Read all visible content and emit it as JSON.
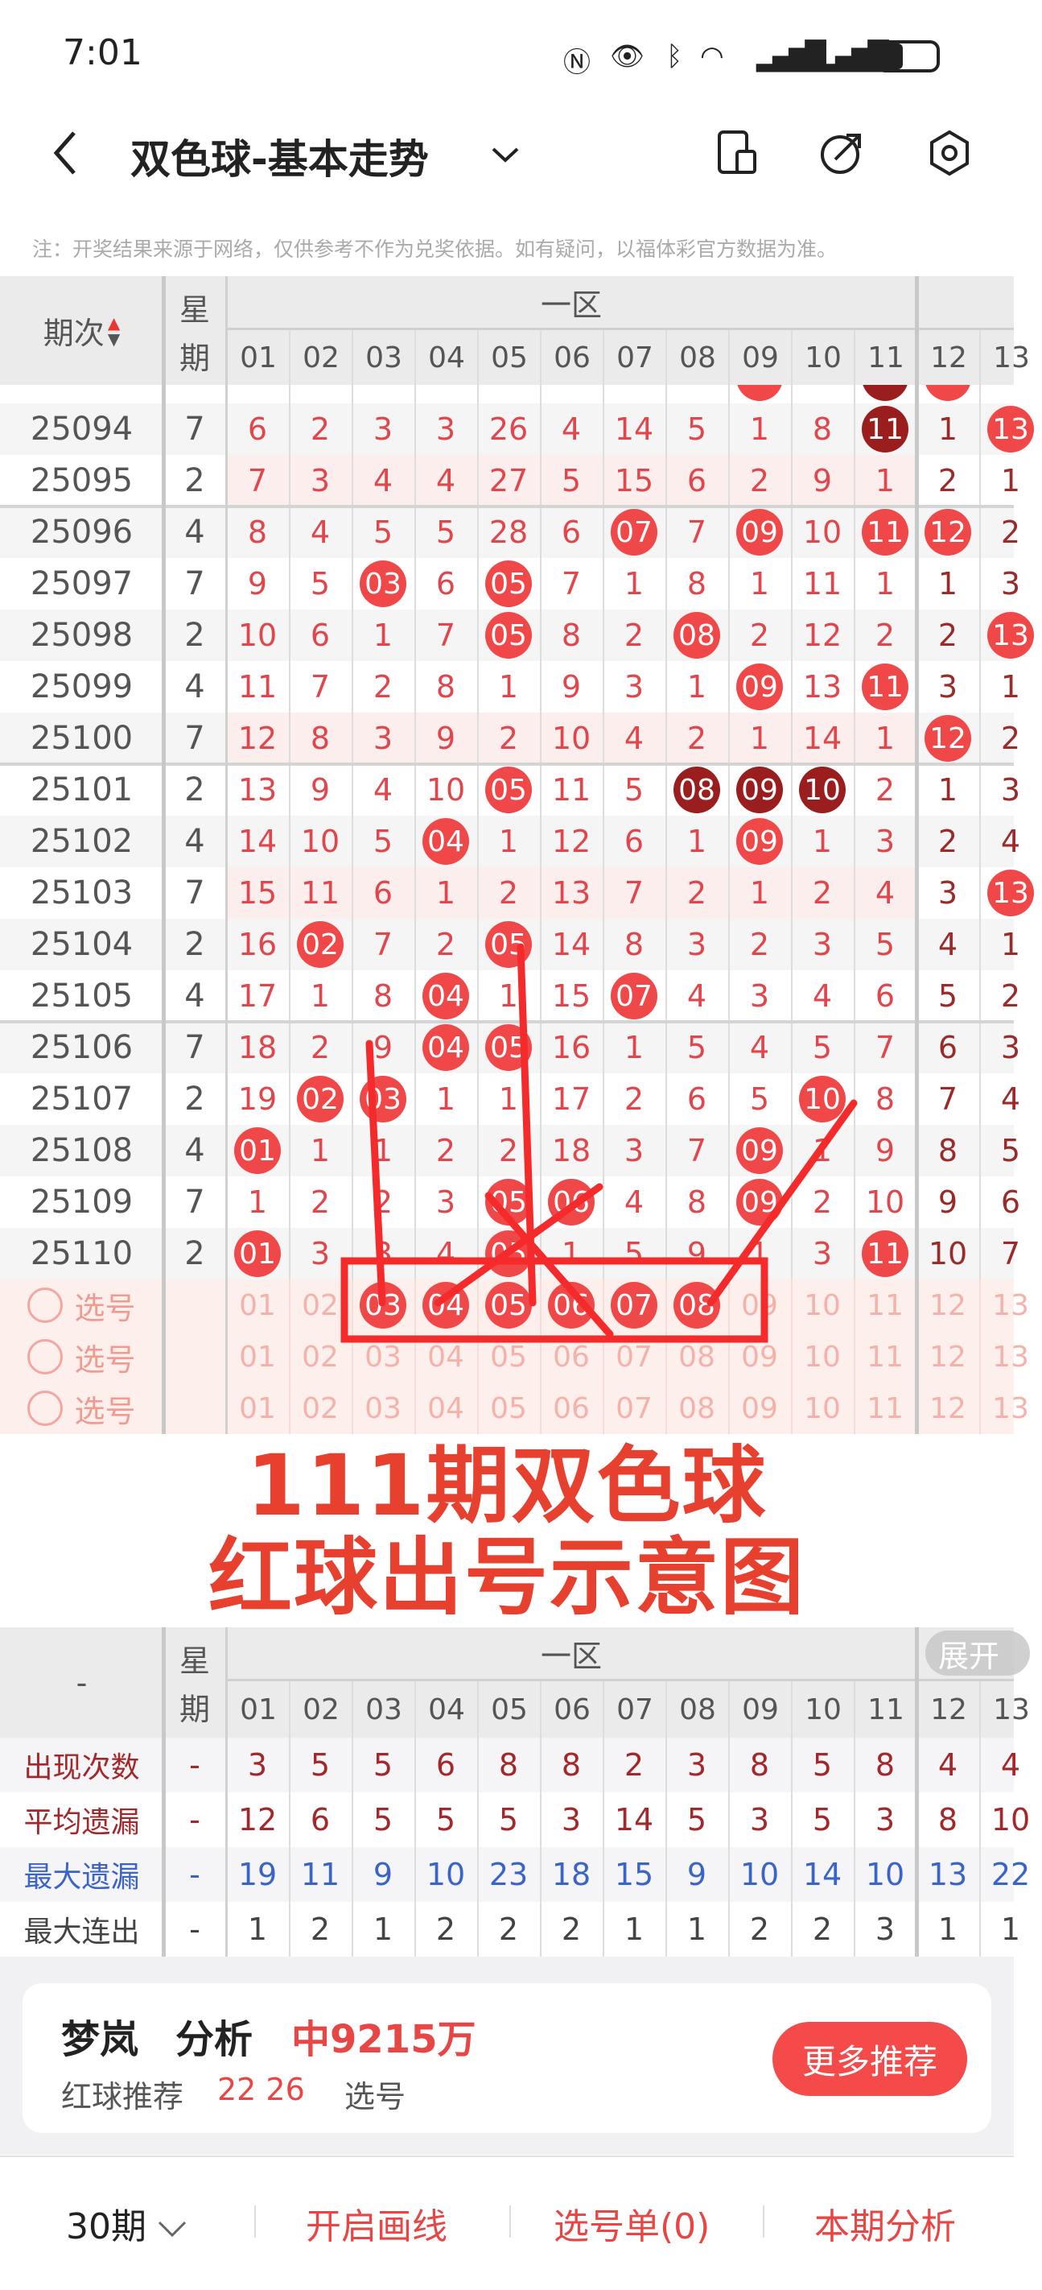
{
  "status_bar": {
    "time": "7:01",
    "icons": [
      "nfc-icon",
      "eye-icon",
      "bluetooth-icon",
      "wifi-icon",
      "signal-icon",
      "signal-icon",
      "battery-icon"
    ]
  },
  "nav": {
    "title": "双色球-基本走势",
    "icons": [
      "back-icon",
      "chevron-down-icon",
      "device-icon",
      "share-icon",
      "settings-icon"
    ]
  },
  "note": "注：开奖结果来源于网络，仅供参考不作为兑奖依据。如有疑问，以福体彩官方数据为准。",
  "header": {
    "period_label": "期次",
    "weekday_label_1": "星",
    "weekday_label_2": "期",
    "zone_label": "一区",
    "numbers": [
      "01",
      "02",
      "03",
      "04",
      "05",
      "06",
      "07",
      "08",
      "09",
      "10",
      "11",
      "12",
      "13"
    ]
  },
  "partial_row": {
    "balls": [
      9,
      11,
      12
    ],
    "dark": [
      11
    ]
  },
  "rows": [
    {
      "period": "25094",
      "weekday": "7",
      "cells": [
        "6",
        "2",
        "3",
        "3",
        "26",
        "4",
        "14",
        "5",
        "1",
        "8",
        "11",
        "1",
        "13"
      ],
      "balls": [
        11,
        13
      ],
      "dark": [
        11
      ]
    },
    {
      "period": "25095",
      "weekday": "2",
      "cells": [
        "7",
        "3",
        "4",
        "4",
        "27",
        "5",
        "15",
        "6",
        "2",
        "9",
        "1",
        "2",
        "1"
      ],
      "balls": [],
      "dark": []
    },
    {
      "period": "25096",
      "weekday": "4",
      "cells": [
        "8",
        "4",
        "5",
        "5",
        "28",
        "6",
        "07",
        "7",
        "09",
        "10",
        "11",
        "12",
        "2"
      ],
      "balls": [
        7,
        9,
        11,
        12
      ],
      "dark": []
    },
    {
      "period": "25097",
      "weekday": "7",
      "cells": [
        "9",
        "5",
        "03",
        "6",
        "05",
        "7",
        "1",
        "8",
        "1",
        "11",
        "1",
        "1",
        "3"
      ],
      "balls": [
        3,
        5
      ],
      "dark": []
    },
    {
      "period": "25098",
      "weekday": "2",
      "cells": [
        "10",
        "6",
        "1",
        "7",
        "05",
        "8",
        "2",
        "08",
        "2",
        "12",
        "2",
        "2",
        "13"
      ],
      "balls": [
        5,
        8,
        13
      ],
      "dark": []
    },
    {
      "period": "25099",
      "weekday": "4",
      "cells": [
        "11",
        "7",
        "2",
        "8",
        "1",
        "9",
        "3",
        "1",
        "09",
        "13",
        "11",
        "3",
        "1"
      ],
      "balls": [
        9,
        11
      ],
      "dark": []
    },
    {
      "period": "25100",
      "weekday": "7",
      "cells": [
        "12",
        "8",
        "3",
        "9",
        "2",
        "10",
        "4",
        "2",
        "1",
        "14",
        "1",
        "12",
        "2"
      ],
      "balls": [
        12
      ],
      "dark": []
    },
    {
      "period": "25101",
      "weekday": "2",
      "cells": [
        "13",
        "9",
        "4",
        "10",
        "05",
        "11",
        "5",
        "08",
        "09",
        "10",
        "2",
        "1",
        "3"
      ],
      "balls": [
        5,
        8,
        9,
        10
      ],
      "dark": [
        8,
        9,
        10
      ]
    },
    {
      "period": "25102",
      "weekday": "4",
      "cells": [
        "14",
        "10",
        "5",
        "04",
        "1",
        "12",
        "6",
        "1",
        "09",
        "1",
        "3",
        "2",
        "4"
      ],
      "balls": [
        4,
        9
      ],
      "dark": []
    },
    {
      "period": "25103",
      "weekday": "7",
      "cells": [
        "15",
        "11",
        "6",
        "1",
        "2",
        "13",
        "7",
        "2",
        "1",
        "2",
        "4",
        "3",
        "13"
      ],
      "balls": [
        13
      ],
      "dark": []
    },
    {
      "period": "25104",
      "weekday": "2",
      "cells": [
        "16",
        "02",
        "7",
        "2",
        "05",
        "14",
        "8",
        "3",
        "2",
        "3",
        "5",
        "4",
        "1"
      ],
      "balls": [
        2,
        5
      ],
      "dark": []
    },
    {
      "period": "25105",
      "weekday": "4",
      "cells": [
        "17",
        "1",
        "8",
        "04",
        "1",
        "15",
        "07",
        "4",
        "3",
        "4",
        "6",
        "5",
        "2"
      ],
      "balls": [
        4,
        7
      ],
      "dark": []
    },
    {
      "period": "25106",
      "weekday": "7",
      "cells": [
        "18",
        "2",
        "9",
        "04",
        "05",
        "16",
        "1",
        "5",
        "4",
        "5",
        "7",
        "6",
        "3"
      ],
      "balls": [
        4,
        5
      ],
      "dark": []
    },
    {
      "period": "25107",
      "weekday": "2",
      "cells": [
        "19",
        "02",
        "03",
        "1",
        "1",
        "17",
        "2",
        "6",
        "5",
        "10",
        "8",
        "7",
        "4"
      ],
      "balls": [
        2,
        3,
        10
      ],
      "dark": []
    },
    {
      "period": "25108",
      "weekday": "4",
      "cells": [
        "01",
        "1",
        "1",
        "2",
        "2",
        "18",
        "3",
        "7",
        "09",
        "1",
        "9",
        "8",
        "5"
      ],
      "balls": [
        1,
        9
      ],
      "dark": []
    },
    {
      "period": "25109",
      "weekday": "7",
      "cells": [
        "1",
        "2",
        "2",
        "3",
        "05",
        "06",
        "4",
        "8",
        "09",
        "2",
        "10",
        "9",
        "6"
      ],
      "balls": [
        5,
        6,
        9
      ],
      "dark": []
    },
    {
      "period": "25110",
      "weekday": "2",
      "cells": [
        "01",
        "3",
        "3",
        "4",
        "05",
        "1",
        "5",
        "9",
        "1",
        "3",
        "11",
        "10",
        "7"
      ],
      "balls": [
        1,
        5,
        11
      ],
      "dark": []
    }
  ],
  "select_rows": [
    {
      "label": "选号",
      "selected": [
        3,
        4,
        5,
        6,
        7,
        8
      ]
    },
    {
      "label": "选号",
      "selected": []
    },
    {
      "label": "选号",
      "selected": []
    }
  ],
  "summary_header": {
    "period_label": "-",
    "expand_label": "展开"
  },
  "summary": [
    {
      "label": "出现次数",
      "dash": "-",
      "values": [
        "3",
        "5",
        "5",
        "6",
        "8",
        "8",
        "2",
        "3",
        "8",
        "5",
        "8",
        "4",
        "4"
      ],
      "color": "#a3282b"
    },
    {
      "label": "平均遗漏",
      "dash": "-",
      "values": [
        "12",
        "6",
        "5",
        "5",
        "5",
        "3",
        "14",
        "5",
        "3",
        "5",
        "3",
        "8",
        "10"
      ],
      "color": "#a3282b"
    },
    {
      "label": "最大遗漏",
      "dash": "-",
      "values": [
        "19",
        "11",
        "9",
        "10",
        "23",
        "18",
        "15",
        "9",
        "10",
        "14",
        "10",
        "13",
        "22"
      ],
      "color": "#3a64c8"
    },
    {
      "label": "最大连出",
      "dash": "-",
      "values": [
        "1",
        "2",
        "1",
        "2",
        "2",
        "2",
        "1",
        "1",
        "2",
        "2",
        "3",
        "1",
        "1"
      ],
      "color": "#444444"
    }
  ],
  "overlay": {
    "line1": "111期双色球",
    "line2": "红球出号示意图",
    "color": "#e8402f"
  },
  "card": {
    "name": "梦岚",
    "type": "分析",
    "prize": "中9215万",
    "rec_label": "红球推荐",
    "rec_numbers": "22 26",
    "pick_label": "选号",
    "more_button": "更多推荐"
  },
  "bottom_nav": {
    "periods": "30期",
    "draw_lines": "开启画线",
    "pick_list": "选号单(0)",
    "analysis": "本期分析"
  },
  "colors": {
    "ball": "#f04848",
    "ball_dark": "#9b1e1e",
    "number": "#e0464b",
    "accent": "#e84545"
  }
}
